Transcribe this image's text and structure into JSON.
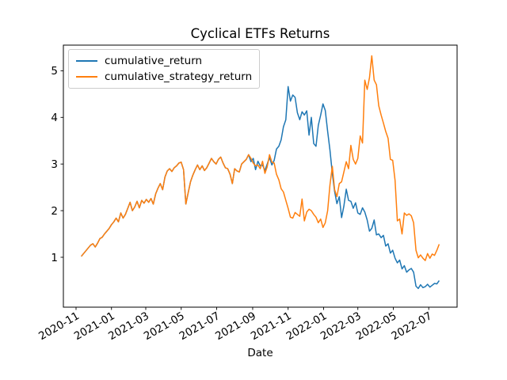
{
  "figure": {
    "background": "#ffffff"
  },
  "chart_data": {
    "type": "line",
    "title": "Cyclical ETFs Returns",
    "xlabel": "Date",
    "ylabel": "",
    "grid": false,
    "legend_position": "upper left",
    "x_start_date": "2020-11-10",
    "x_step_days": 4,
    "x_tick_labels": [
      "2020-11",
      "2021-01",
      "2021-03",
      "2021-05",
      "2021-07",
      "2021-09",
      "2021-11",
      "2022-01",
      "2022-03",
      "2022-05",
      "2022-07"
    ],
    "y_tick_labels": [
      "1",
      "2",
      "3",
      "4",
      "5"
    ],
    "ylim": [
      -0.07,
      5.55
    ],
    "series": [
      {
        "name": "cumulative_return",
        "color": "#1f77b4",
        "values": [
          1.02,
          1.08,
          1.14,
          1.2,
          1.26,
          1.29,
          1.22,
          1.3,
          1.4,
          1.43,
          1.5,
          1.56,
          1.62,
          1.7,
          1.76,
          1.84,
          1.76,
          1.95,
          1.84,
          1.92,
          2.05,
          2.18,
          2.0,
          2.08,
          2.2,
          2.06,
          2.22,
          2.16,
          2.24,
          2.18,
          2.26,
          2.14,
          2.36,
          2.48,
          2.58,
          2.45,
          2.72,
          2.85,
          2.9,
          2.84,
          2.92,
          2.96,
          3.02,
          3.04,
          2.88,
          2.14,
          2.38,
          2.62,
          2.76,
          2.88,
          2.98,
          2.88,
          2.96,
          2.86,
          2.92,
          3.02,
          3.12,
          3.05,
          3.0,
          3.1,
          3.15,
          3.02,
          2.92,
          2.9,
          2.78,
          2.58,
          2.9,
          2.85,
          2.83,
          3.0,
          3.05,
          3.1,
          3.2,
          3.05,
          3.12,
          2.88,
          3.06,
          2.96,
          2.98,
          2.86,
          3.0,
          3.14,
          2.98,
          3.08,
          3.32,
          3.38,
          3.52,
          3.8,
          3.95,
          4.66,
          4.35,
          4.48,
          4.43,
          4.1,
          3.95,
          4.12,
          4.05,
          4.14,
          3.62,
          4.0,
          3.44,
          3.38,
          3.83,
          4.05,
          4.29,
          4.15,
          3.7,
          3.3,
          2.8,
          2.41,
          2.15,
          2.3,
          1.85,
          2.1,
          2.46,
          2.22,
          2.2,
          2.05,
          2.17,
          1.95,
          1.92,
          2.06,
          1.97,
          1.8,
          1.56,
          1.62,
          1.8,
          1.48,
          1.5,
          1.42,
          1.47,
          1.24,
          1.29,
          1.09,
          1.15,
          0.98,
          0.88,
          0.94,
          0.75,
          0.82,
          0.68,
          0.73,
          0.76,
          0.68,
          0.38,
          0.33,
          0.41,
          0.35,
          0.37,
          0.42,
          0.36,
          0.4,
          0.44,
          0.43,
          0.5
        ]
      },
      {
        "name": "cumulative_strategy_return",
        "color": "#ff7f0e",
        "values": [
          1.02,
          1.08,
          1.14,
          1.2,
          1.26,
          1.29,
          1.22,
          1.3,
          1.4,
          1.43,
          1.5,
          1.56,
          1.62,
          1.7,
          1.76,
          1.84,
          1.76,
          1.95,
          1.84,
          1.92,
          2.05,
          2.18,
          2.0,
          2.08,
          2.2,
          2.06,
          2.22,
          2.16,
          2.24,
          2.18,
          2.26,
          2.14,
          2.36,
          2.48,
          2.58,
          2.45,
          2.72,
          2.85,
          2.9,
          2.84,
          2.92,
          2.96,
          3.02,
          3.04,
          2.88,
          2.14,
          2.38,
          2.62,
          2.76,
          2.88,
          2.98,
          2.88,
          2.96,
          2.86,
          2.92,
          3.02,
          3.12,
          3.05,
          3.0,
          3.1,
          3.15,
          3.02,
          2.92,
          2.9,
          2.78,
          2.58,
          2.9,
          2.85,
          2.83,
          3.0,
          3.05,
          3.1,
          3.2,
          3.12,
          3.02,
          2.96,
          2.98,
          2.9,
          3.06,
          2.8,
          2.94,
          3.2,
          3.04,
          3.02,
          2.78,
          2.66,
          2.47,
          2.4,
          2.22,
          2.05,
          1.86,
          1.84,
          1.96,
          1.92,
          1.88,
          2.25,
          1.78,
          1.97,
          2.03,
          2.0,
          1.92,
          1.86,
          1.74,
          1.82,
          1.64,
          1.74,
          2.0,
          2.55,
          2.95,
          2.45,
          2.3,
          2.58,
          2.62,
          2.83,
          3.05,
          2.9,
          3.4,
          3.1,
          3.0,
          3.12,
          3.6,
          3.45,
          4.8,
          4.6,
          4.85,
          5.32,
          4.8,
          4.7,
          4.25,
          4.05,
          3.88,
          3.7,
          3.55,
          3.1,
          3.08,
          2.65,
          1.78,
          1.82,
          1.5,
          1.95,
          1.9,
          1.93,
          1.89,
          1.74,
          1.15,
          0.99,
          1.05,
          0.98,
          0.93,
          1.08,
          0.98,
          1.07,
          1.04,
          1.15,
          1.28
        ]
      }
    ]
  }
}
